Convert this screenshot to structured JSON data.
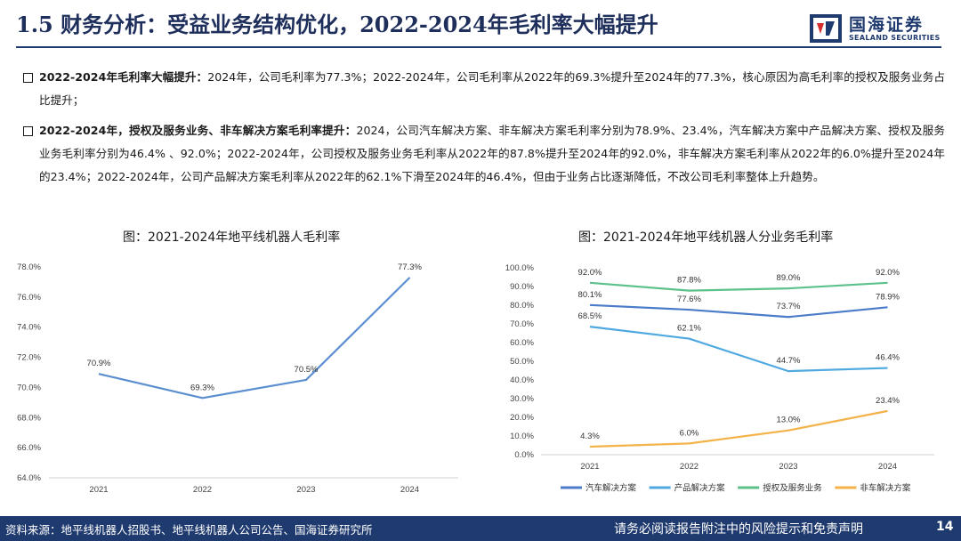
{
  "header": {
    "title": "1.5 财务分析：受益业务结构优化，2022-2024年毛利率大幅提升",
    "logo_cn": "国海证券",
    "logo_en": "SEALAND SECURITIES"
  },
  "bullets": [
    {
      "lead": "2022-2024年毛利率大幅提升：",
      "body": "2024年，公司毛利率为77.3%；2022-2024年，公司毛利率从2022年的69.3%提升至2024年的77.3%，核心原因为高毛利率的授权及服务业务占比提升；"
    },
    {
      "lead": "2022-2024年，授权及服务业务、非车解决方案毛利率提升：",
      "body": "2024，公司汽车解决方案、非车解决方案毛利率分别为78.9%、23.4%，汽车解决方案中产品解决方案、授权及服务业务毛利率分别为46.4% 、92.0%；2022-2024年，公司授权及服务业务毛利率从2022年的87.8%提升至2024年的92.0%，非车解决方案毛利率从2022年的6.0%提升至2024年的23.4%；2022-2024年，公司产品解决方案毛利率从2022年的62.1%下滑至2024年的46.4%，但由于业务占比逐渐降低，不改公司毛利率整体上升趋势。"
    }
  ],
  "chart_data": [
    {
      "type": "line",
      "title": "图：2021-2024年地平线机器人毛利率",
      "x": [
        "2021",
        "2022",
        "2023",
        "2024"
      ],
      "series": [
        {
          "values": [
            70.9,
            69.3,
            70.5,
            77.3
          ],
          "labels": [
            "70.9%",
            "69.3%",
            "70.5%",
            "77.3%"
          ],
          "color": "#5b8fd0"
        }
      ],
      "ylim": [
        64,
        78
      ],
      "yticks": [
        "64.0%",
        "66.0%",
        "68.0%",
        "70.0%",
        "72.0%",
        "74.0%",
        "76.0%",
        "78.0%"
      ],
      "grid": false,
      "legend": "none"
    },
    {
      "type": "line",
      "title": "图：2021-2024年地平线机器人分业务毛利率",
      "x": [
        "2021",
        "2022",
        "2023",
        "2024"
      ],
      "series": [
        {
          "name": "汽车解决方案",
          "values": [
            80.1,
            77.6,
            73.7,
            78.9
          ],
          "labels": [
            "80.1%",
            "77.6%",
            "73.7%",
            "78.9%"
          ],
          "color": "#4a7cc9"
        },
        {
          "name": "产品解决方案",
          "values": [
            68.5,
            62.1,
            44.7,
            46.4
          ],
          "labels": [
            "68.5%",
            "62.1%",
            "44.7%",
            "46.4%"
          ],
          "color": "#4fa9e0"
        },
        {
          "name": "授权及服务业务",
          "values": [
            92.0,
            87.8,
            89.0,
            92.0
          ],
          "labels": [
            "92.0%",
            "87.8%",
            "89.0%",
            "92.0%"
          ],
          "color": "#5cc18a"
        },
        {
          "name": "非车解决方案",
          "values": [
            4.3,
            6.0,
            13.0,
            23.4
          ],
          "labels": [
            "4.3%",
            "6.0%",
            "13.0%",
            "23.4%"
          ],
          "color": "#f3b24a"
        }
      ],
      "ylim": [
        0,
        100
      ],
      "yticks": [
        "0.0%",
        "10.0%",
        "20.0%",
        "30.0%",
        "40.0%",
        "50.0%",
        "60.0%",
        "70.0%",
        "80.0%",
        "90.0%",
        "100.0%"
      ],
      "grid": false,
      "legend": "bottom"
    }
  ],
  "footer": {
    "source": "资料来源：地平线机器人招股书、地平线机器人公司公告、国海证券研究所",
    "disclaimer": "请务必阅读报告附注中的风险提示和免责声明",
    "page": "14"
  }
}
